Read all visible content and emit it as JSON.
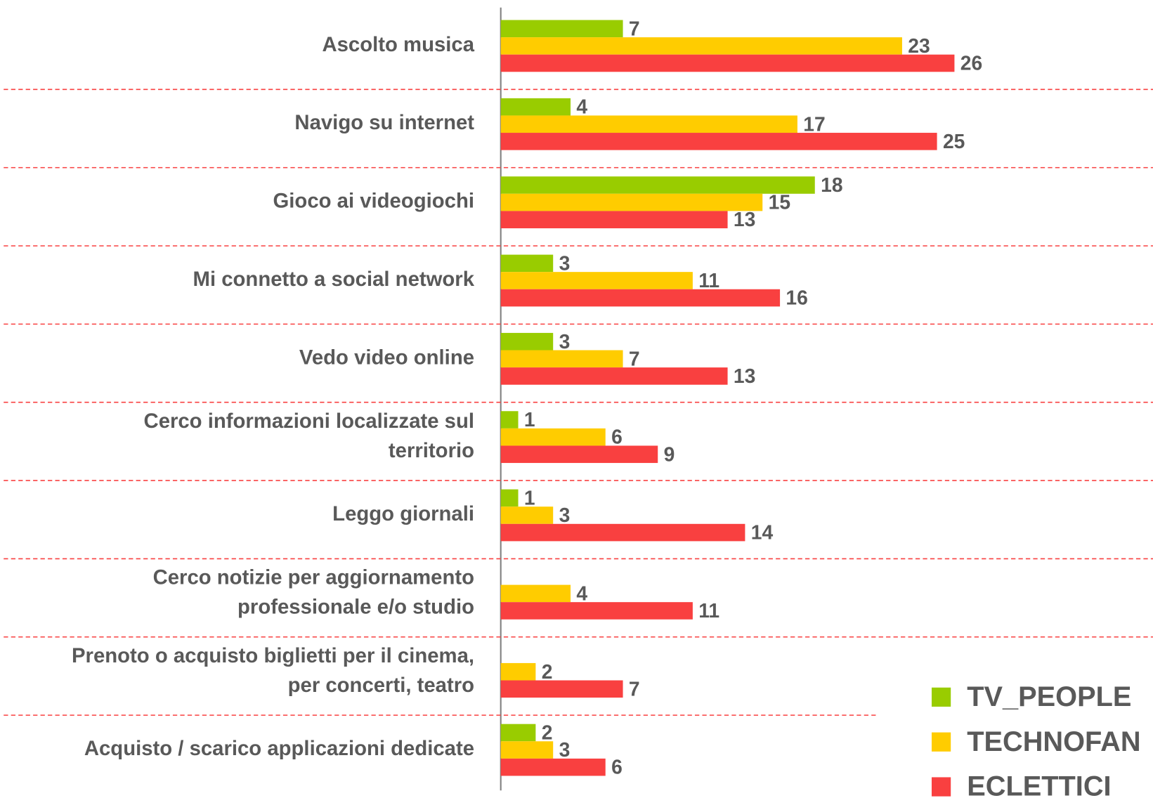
{
  "chart_data": {
    "type": "bar",
    "orientation": "horizontal",
    "categories": [
      "Ascolto musica",
      "Navigo su internet",
      "Gioco ai videogiochi",
      "Mi connetto a social network",
      "Vedo video online",
      "Cerco informazioni localizzate sul\nterritorio",
      "Leggo giornali",
      "Cerco notizie per aggiornamento\nprofessionale e/o studio",
      "Prenoto o acquisto biglietti per il cinema,\nper concerti, teatro",
      "Acquisto / scarico applicazioni dedicate"
    ],
    "series": [
      {
        "name": "TV_PEOPLE",
        "color": "#99cc00",
        "values": [
          7,
          4,
          18,
          3,
          3,
          1,
          1,
          null,
          null,
          2
        ]
      },
      {
        "name": "TECHNOFAN",
        "color": "#ffcc00",
        "values": [
          23,
          17,
          15,
          11,
          7,
          6,
          3,
          4,
          2,
          3
        ]
      },
      {
        "name": "ECLETTICI",
        "color": "#f94040",
        "values": [
          26,
          25,
          13,
          16,
          13,
          9,
          14,
          11,
          7,
          6
        ]
      }
    ],
    "xlim": [
      0,
      26
    ],
    "legend": "bottom-right"
  }
}
